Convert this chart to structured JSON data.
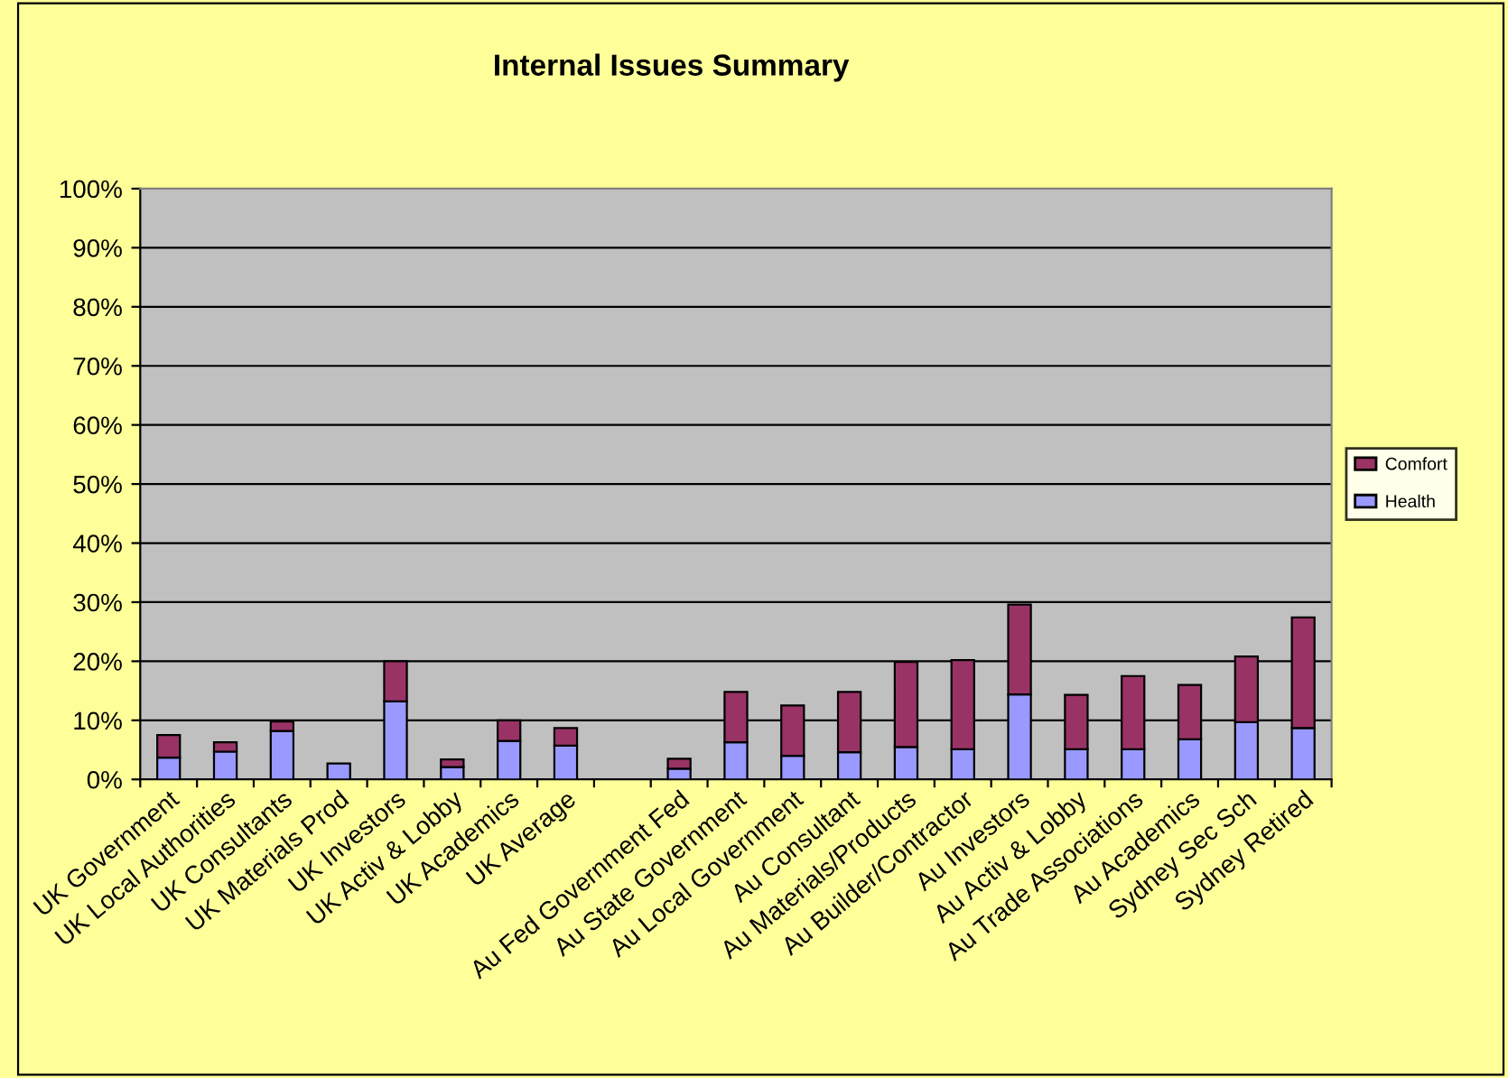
{
  "chart_data": {
    "type": "bar",
    "title": "Internal Issues Summary",
    "stacked": true,
    "categories": [
      "UK Government",
      "UK Local Authorities",
      "UK Consultants",
      "UK Materials Prod",
      "UK Investors",
      "UK Activ & Lobby",
      "UK Academics",
      "UK Average",
      null,
      "Au Fed Government Fed",
      "Au State Government",
      "Au Local Government",
      "Au Consultant",
      "Au Materials/Products",
      "Au Builder/Contractor",
      "Au Investors",
      "Au Activ & Lobby",
      "Au Trade Associations",
      "Au Academics",
      "Sydney Sec Sch",
      "Sydney Retired"
    ],
    "series": [
      {
        "name": "Health",
        "color": "#9999ff",
        "values": [
          3.7,
          4.7,
          8.2,
          2.7,
          13.2,
          2.1,
          6.5,
          5.7,
          null,
          1.8,
          6.3,
          4.0,
          4.6,
          5.5,
          5.1,
          14.4,
          5.1,
          5.1,
          6.8,
          9.7,
          8.7
        ]
      },
      {
        "name": "Comfort",
        "color": "#993366",
        "values": [
          3.8,
          1.6,
          1.6,
          null,
          6.8,
          1.3,
          3.5,
          3.0,
          null,
          1.7,
          8.5,
          8.5,
          10.2,
          14.4,
          15.1,
          15.2,
          9.2,
          12.4,
          9.2,
          11.1,
          18.7
        ]
      }
    ],
    "ylim": [
      0,
      100
    ],
    "yticks": [
      {
        "value": 0,
        "label": "0%"
      },
      {
        "value": 10,
        "label": "10%"
      },
      {
        "value": 20,
        "label": "20%"
      },
      {
        "value": 30,
        "label": "30%"
      },
      {
        "value": 40,
        "label": "40%"
      },
      {
        "value": 50,
        "label": "50%"
      },
      {
        "value": 60,
        "label": "60%"
      },
      {
        "value": 70,
        "label": "70%"
      },
      {
        "value": 80,
        "label": "80%"
      },
      {
        "value": 90,
        "label": "90%"
      },
      {
        "value": 100,
        "label": "100%"
      }
    ],
    "grid": "y",
    "legend": "right"
  }
}
